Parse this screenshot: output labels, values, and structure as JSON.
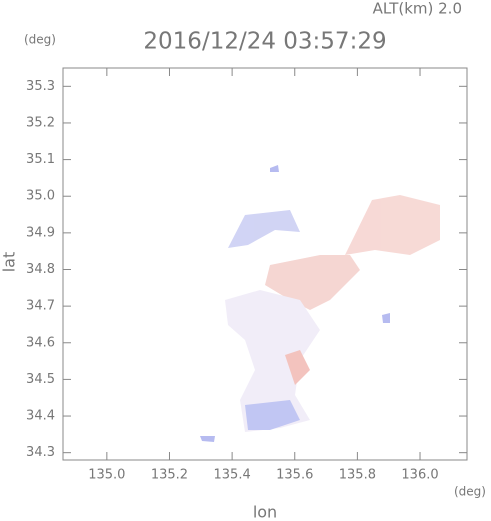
{
  "chart_data": {
    "type": "map",
    "title": "2016/12/24 03:57:29",
    "annotation": "ALT(km) 2.0",
    "y_unit": "(deg)",
    "x_unit": "(deg)",
    "xlabel": "lon",
    "ylabel": "lat",
    "xlim": [
      134.86,
      136.15
    ],
    "ylim": [
      34.28,
      35.35
    ],
    "xticks": [
      {
        "value": 135,
        "label": "135.0"
      },
      135.2,
      135.4,
      135.6,
      135.8,
      {
        "value": 136,
        "label": "136.0"
      }
    ],
    "yticks": [
      34.3,
      34.4,
      34.5,
      34.6,
      34.7,
      34.8,
      34.9,
      {
        "value": 35,
        "label": "35.0"
      },
      35.1,
      35.2,
      35.3
    ]
  }
}
